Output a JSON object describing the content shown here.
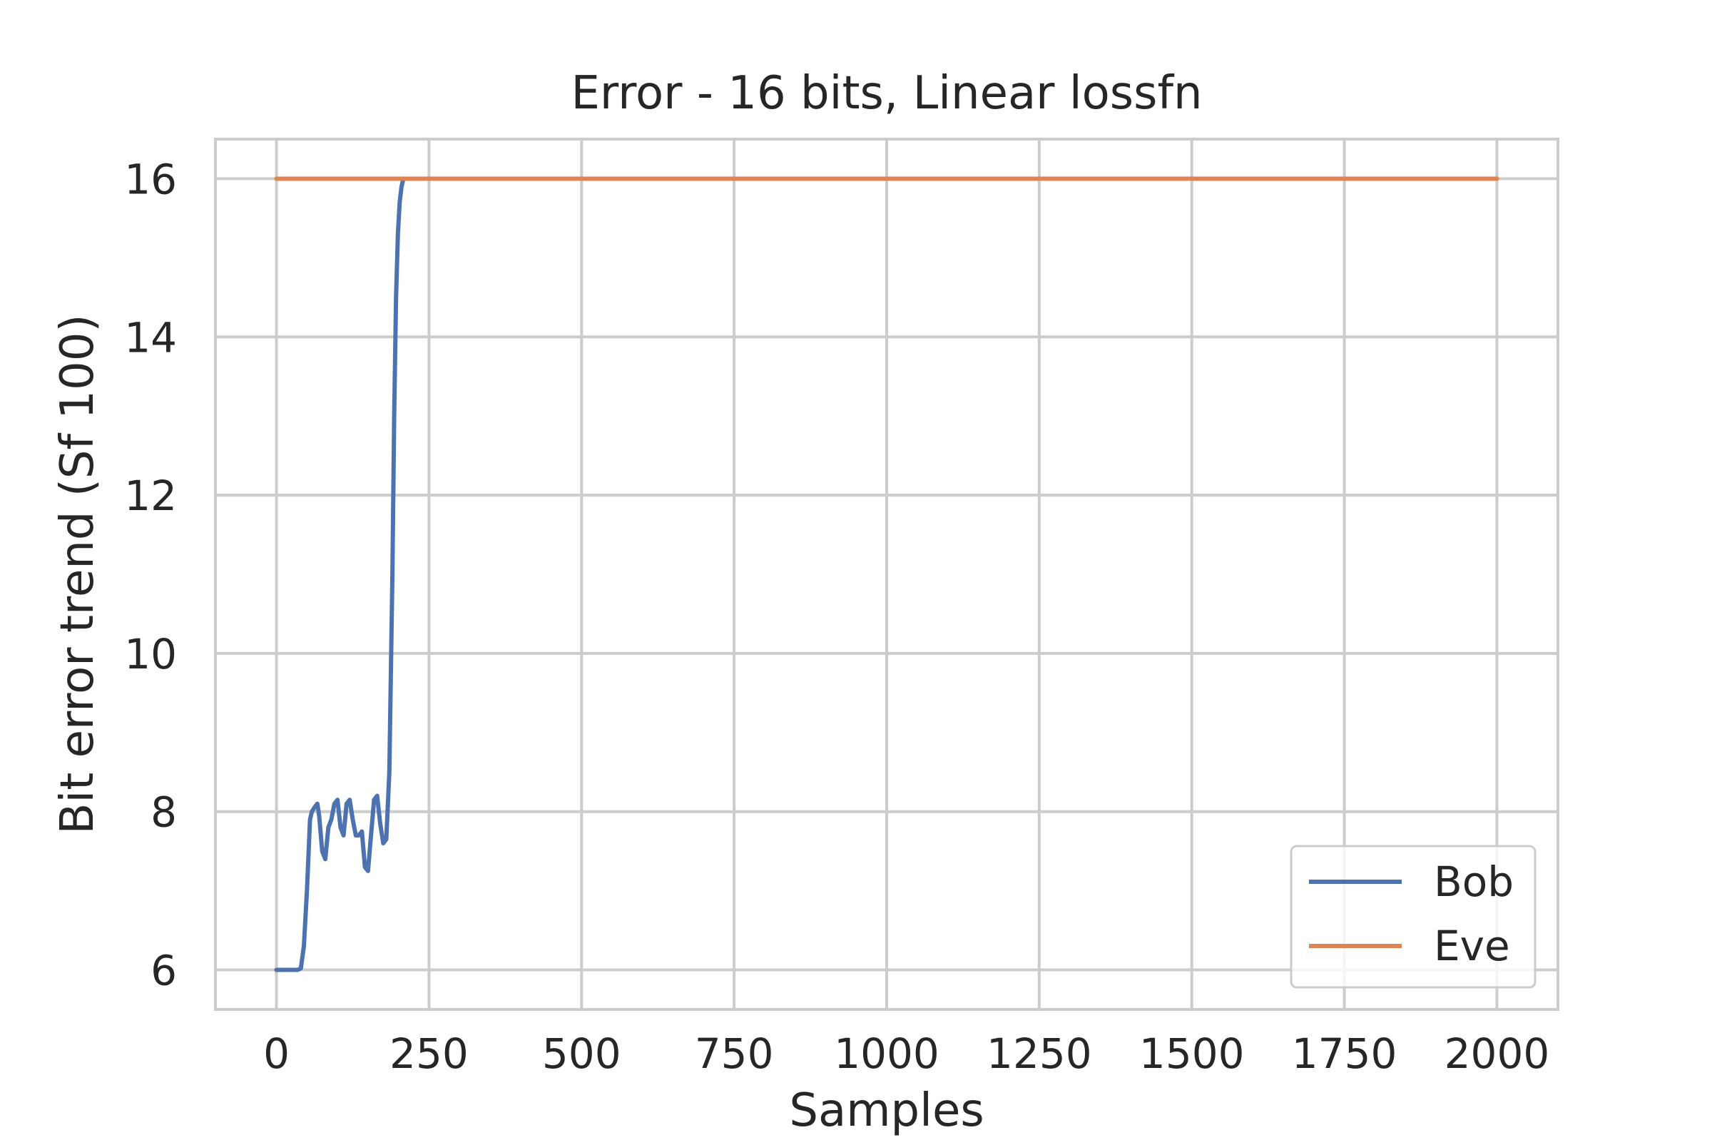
{
  "chart_data": {
    "type": "line",
    "title": "Error - 16 bits, Linear lossfn",
    "xlabel": "Samples",
    "ylabel": "Bit error trend (Sf 100)",
    "xlim": [
      -100,
      2100
    ],
    "ylim": [
      5.5,
      16.5
    ],
    "xticks": [
      0,
      250,
      500,
      750,
      1000,
      1250,
      1500,
      1750,
      2000
    ],
    "xtick_labels": [
      "0",
      "250",
      "500",
      "750",
      "1000",
      "1250",
      "1500",
      "1750",
      "2000"
    ],
    "yticks": [
      6,
      8,
      10,
      12,
      14,
      16
    ],
    "ytick_labels": [
      "6",
      "8",
      "10",
      "12",
      "14",
      "16"
    ],
    "grid": true,
    "legend_position": "lower-right",
    "series": [
      {
        "name": "Bob",
        "color": "#4c72b0",
        "x": [
          0,
          20,
          35,
          40,
          45,
          50,
          55,
          58,
          62,
          67,
          70,
          75,
          80,
          85,
          90,
          95,
          100,
          105,
          110,
          115,
          120,
          125,
          130,
          135,
          140,
          145,
          150,
          155,
          160,
          165,
          170,
          175,
          180,
          185,
          190,
          193,
          196,
          199,
          202,
          205,
          208,
          210,
          212,
          215
        ],
        "y": [
          6,
          6,
          6,
          6.02,
          6.3,
          7.0,
          7.9,
          8.0,
          8.05,
          8.1,
          7.95,
          7.5,
          7.4,
          7.8,
          7.9,
          8.1,
          8.15,
          7.8,
          7.7,
          8.1,
          8.15,
          7.9,
          7.7,
          7.7,
          7.75,
          7.3,
          7.25,
          7.7,
          8.15,
          8.2,
          7.85,
          7.6,
          7.65,
          8.5,
          11.0,
          13.0,
          14.5,
          15.3,
          15.7,
          15.9,
          16.0,
          16.0,
          16.0,
          16.0
        ]
      },
      {
        "name": "Eve",
        "color": "#dd8452",
        "x": [
          0,
          2000
        ],
        "y": [
          16,
          16
        ]
      }
    ]
  }
}
